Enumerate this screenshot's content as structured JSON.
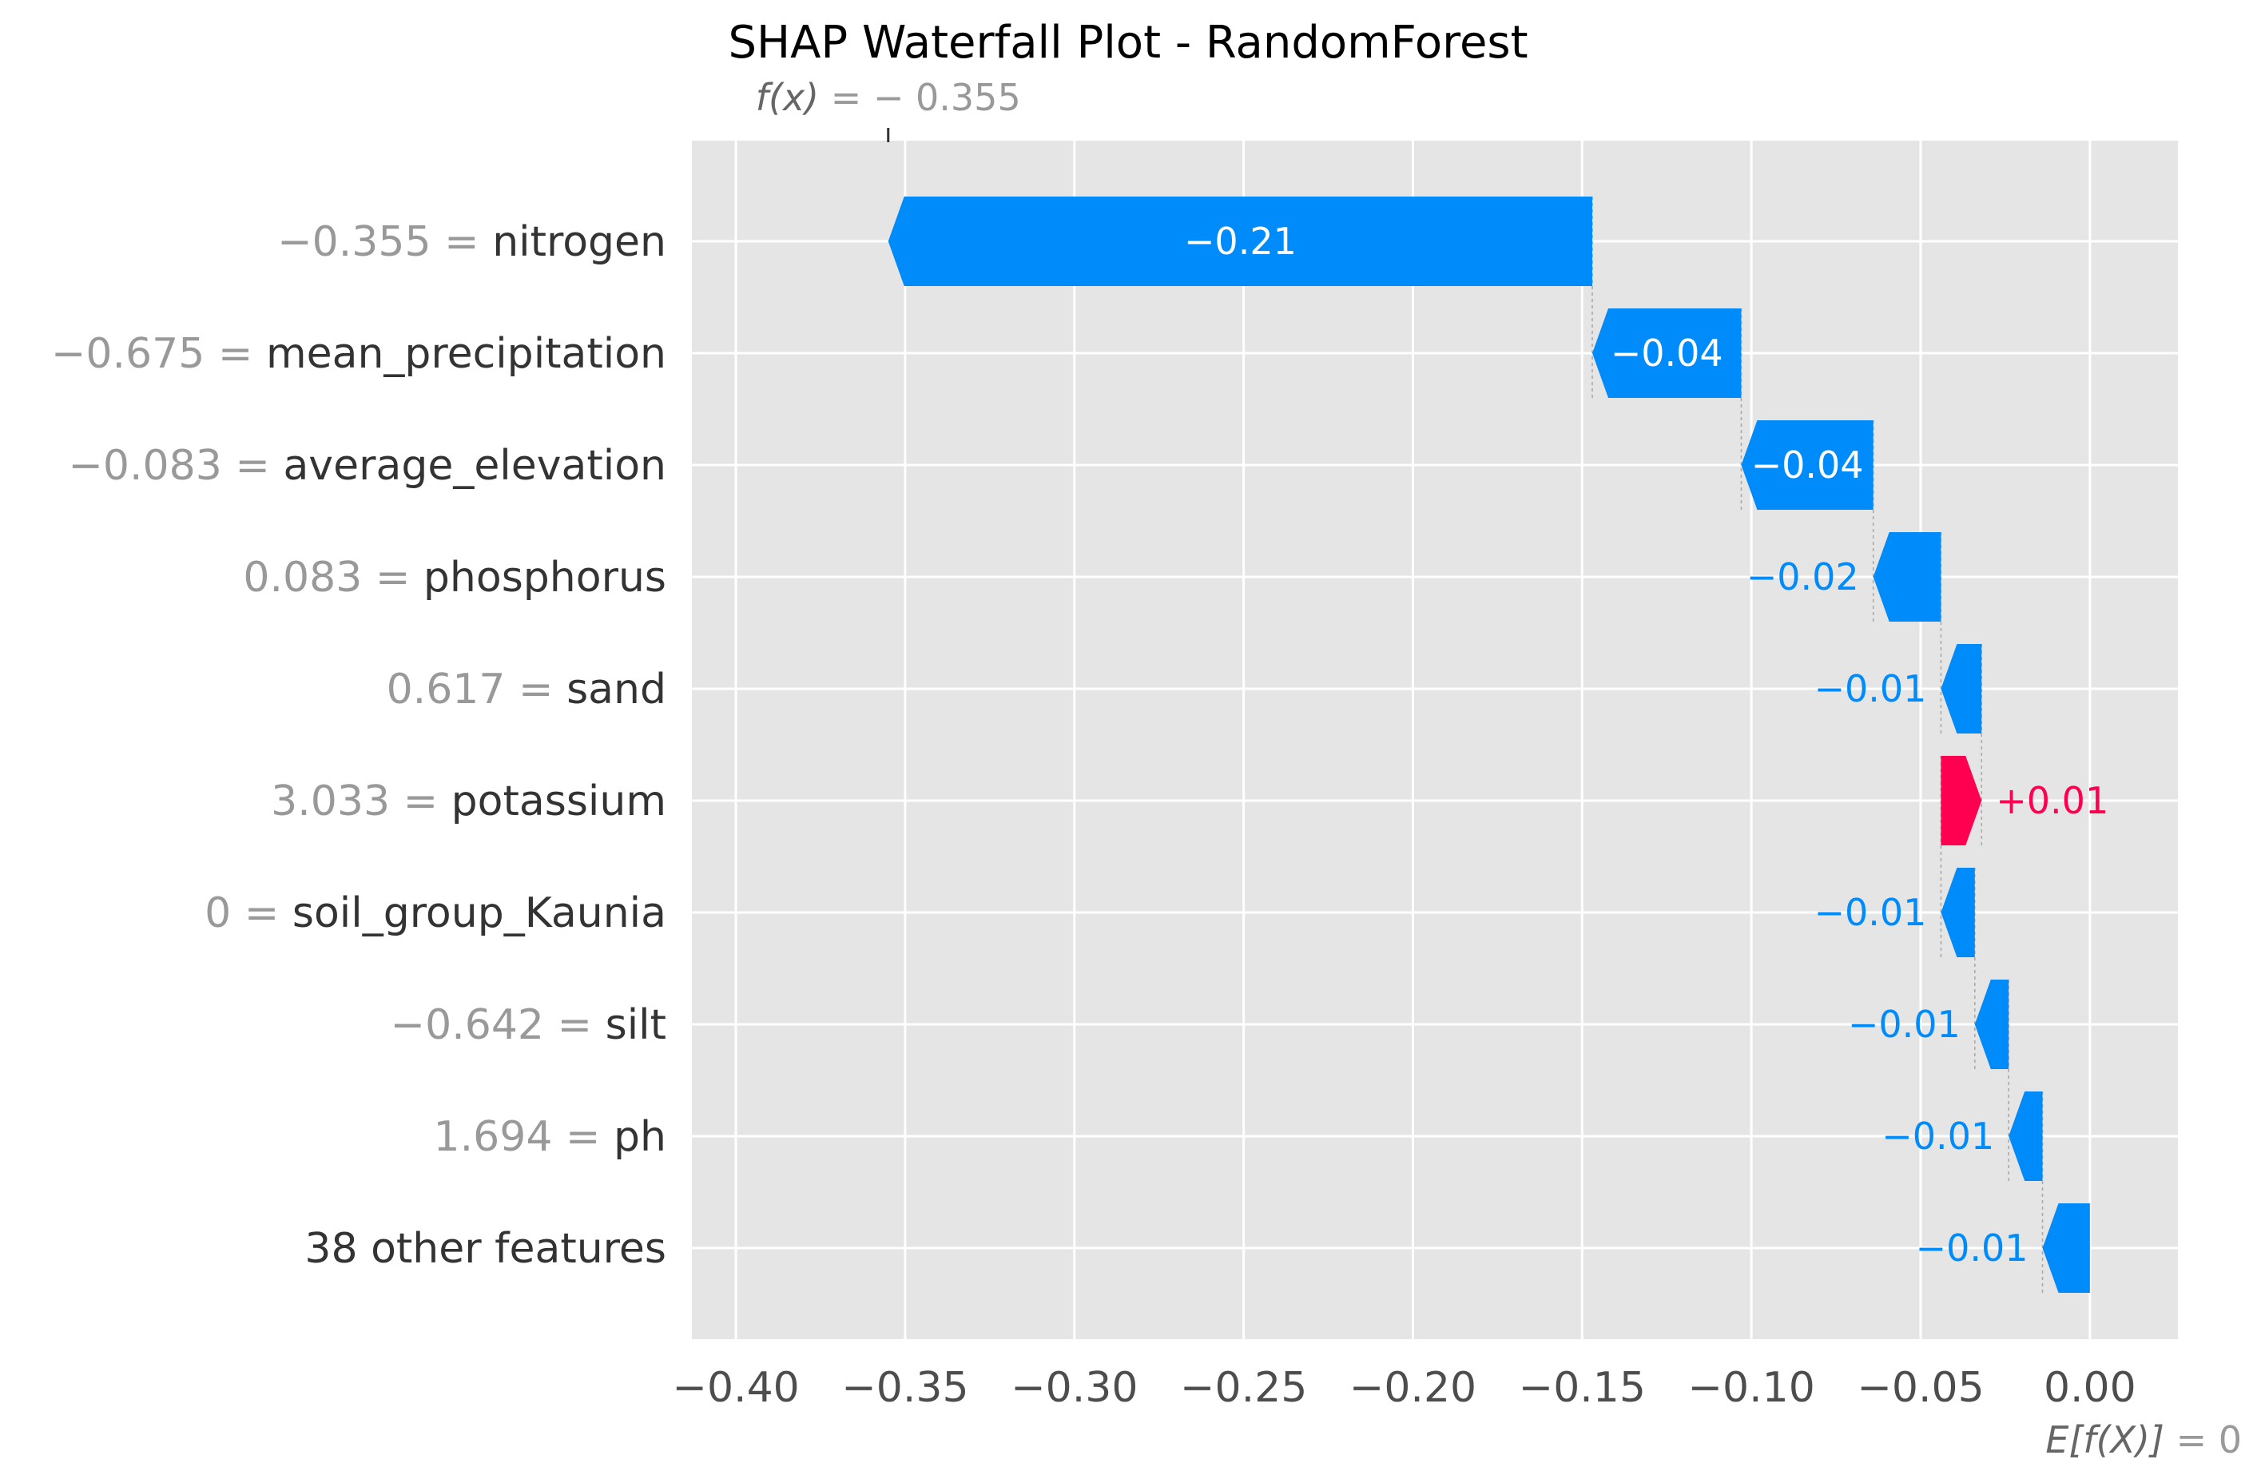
{
  "chart_data": {
    "type": "waterfall",
    "title": "SHAP Waterfall Plot - RandomForest",
    "fx": {
      "symbol": "f(x)",
      "equals": "= − 0.355",
      "value": -0.355
    },
    "base": {
      "symbol": "E[f(X)]",
      "equals": "= 0",
      "value": 0
    },
    "xlim": [
      -0.413,
      0.026
    ],
    "xticks": [
      -0.4,
      -0.35,
      -0.3,
      -0.25,
      -0.2,
      -0.15,
      -0.1,
      -0.05,
      0.0
    ],
    "xtick_labels": [
      "−0.40",
      "−0.35",
      "−0.30",
      "−0.25",
      "−0.20",
      "−0.15",
      "−0.10",
      "−0.05",
      "0.00"
    ],
    "grid": true,
    "features": [
      {
        "value_text": "−0.355 =",
        "name": "nitrogen",
        "start": -0.147,
        "end": -0.355,
        "label": "−0.21",
        "label_inside": true
      },
      {
        "value_text": "−0.675 =",
        "name": "mean_precipitation",
        "start": -0.103,
        "end": -0.147,
        "label": "−0.04",
        "label_inside": true
      },
      {
        "value_text": "−0.083 =",
        "name": "average_elevation",
        "start": -0.064,
        "end": -0.103,
        "label": "−0.04",
        "label_inside": true
      },
      {
        "value_text": "0.083 =",
        "name": "phosphorus",
        "start": -0.044,
        "end": -0.064,
        "label": "−0.02",
        "label_inside": false
      },
      {
        "value_text": "0.617 =",
        "name": "sand",
        "start": -0.032,
        "end": -0.044,
        "label": "−0.01",
        "label_inside": false
      },
      {
        "value_text": "3.033 =",
        "name": "potassium",
        "start": -0.044,
        "end": -0.032,
        "label": "+0.01",
        "label_inside": false
      },
      {
        "value_text": "0 =",
        "name": "soil_group_Kaunia",
        "start": -0.034,
        "end": -0.044,
        "label": "−0.01",
        "label_inside": false
      },
      {
        "value_text": "−0.642 =",
        "name": "silt",
        "start": -0.024,
        "end": -0.034,
        "label": "−0.01",
        "label_inside": false
      },
      {
        "value_text": "1.694 =",
        "name": "ph",
        "start": -0.014,
        "end": -0.024,
        "label": "−0.01",
        "label_inside": false
      },
      {
        "value_text": "",
        "name": "38 other features",
        "start": 0.0,
        "end": -0.014,
        "label": "−0.01",
        "label_inside": false
      }
    ],
    "colors": {
      "negative": "#008bfb",
      "positive": "#ff0051",
      "plot_bg": "#e5e5e5",
      "grid": "#ffffff",
      "label_inside": "#ffffff",
      "label_grey": "#999999",
      "fx_text": "#666666"
    }
  }
}
